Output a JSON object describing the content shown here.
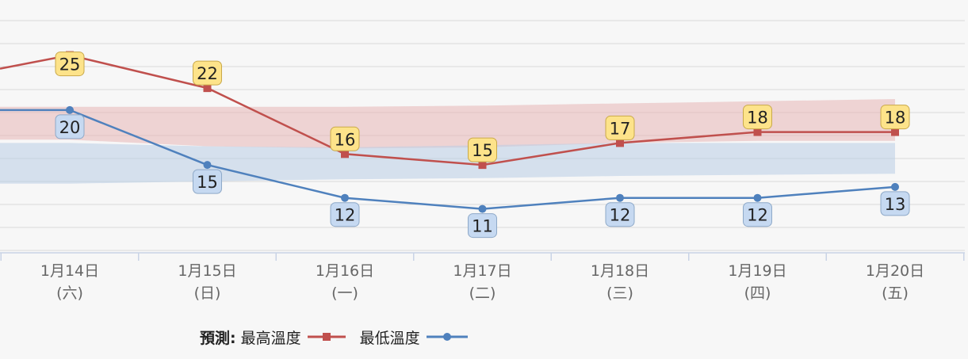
{
  "chart_data": {
    "type": "line",
    "categories": [
      [
        "1月14日",
        "(六)"
      ],
      [
        "1月15日",
        "(日)"
      ],
      [
        "1月16日",
        "(一)"
      ],
      [
        "1月17日",
        "(二)"
      ],
      [
        "1月18日",
        "(三)"
      ],
      [
        "1月19日",
        "(四)"
      ],
      [
        "1月20日",
        "(五)"
      ]
    ],
    "series": [
      {
        "key": "max",
        "name": "最高溫度",
        "color": "#c0504d",
        "marker": "square",
        "values": [
          25,
          22,
          16,
          15,
          17,
          18,
          18
        ],
        "label_bg": "#fde38a",
        "label_border": "#c9a94a"
      },
      {
        "key": "min",
        "name": "最低溫度",
        "color": "#4f81bd",
        "marker": "circle",
        "values": [
          20,
          15,
          12,
          11,
          12,
          12,
          13
        ],
        "label_bg": "#c6d9f1",
        "label_border": "#8ea9c8"
      }
    ],
    "ranges": [
      {
        "key": "max_range",
        "color": "#e8b7b7",
        "upper": [
          20.3,
          20.3,
          20.3,
          20.4,
          20.6,
          20.8,
          21.0
        ],
        "lower": [
          17.3,
          16.7,
          16.5,
          16.6,
          17.0,
          17.2,
          17.2
        ]
      },
      {
        "key": "min_range",
        "color": "#b9cde6",
        "upper": [
          17.0,
          16.7,
          16.6,
          16.8,
          17.0,
          17.0,
          17.0
        ],
        "lower": [
          13.3,
          13.5,
          13.7,
          13.8,
          14.0,
          14.1,
          14.2
        ]
      }
    ],
    "ylim": [
      7,
      28
    ],
    "grid": true,
    "legend_title": "預測:",
    "legend_position": "bottom"
  }
}
